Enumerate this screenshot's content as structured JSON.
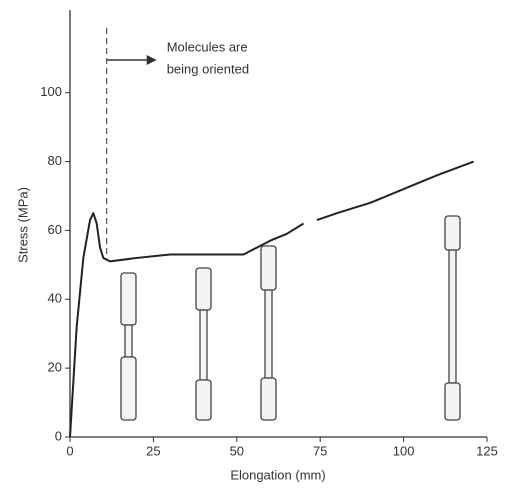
{
  "chart_data": {
    "type": "line",
    "x_label": "Elongation (mm)",
    "y_label": "Stress (MPa)",
    "x": [
      0,
      2,
      4,
      6,
      7,
      8,
      9,
      10,
      12,
      20,
      30,
      40,
      50,
      52,
      56,
      60,
      65,
      70,
      72,
      74,
      80,
      90,
      100,
      110,
      121
    ],
    "series": [
      {
        "color": "#222222",
        "values": [
          0,
          32,
          52,
          63,
          65,
          62,
          55,
          52,
          51,
          52,
          53,
          53,
          53,
          53,
          55,
          57,
          59,
          62,
          null,
          63,
          65,
          68,
          72,
          76,
          80
        ]
      }
    ],
    "xlim": [
      0,
      125
    ],
    "xticks": [
      0,
      25,
      50,
      75,
      100,
      125
    ],
    "ylim": [
      0,
      124
    ],
    "yticks": [
      0,
      20,
      40,
      60,
      80,
      100
    ],
    "annotation": {
      "x": 11,
      "lines": [
        "Molecules are",
        "being oriented"
      ]
    }
  }
}
